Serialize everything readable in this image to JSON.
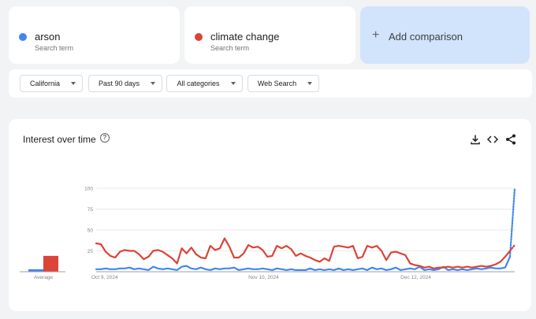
{
  "terms": [
    {
      "name": "arson",
      "subtitle": "Search term",
      "color": "#4285f4"
    },
    {
      "name": "climate change",
      "subtitle": "Search term",
      "color": "#db4437"
    }
  ],
  "add_comparison": {
    "plus": "+",
    "label": "Add comparison"
  },
  "filters": {
    "region": "California",
    "period": "Past 90 days",
    "category": "All categories",
    "search_type": "Web Search"
  },
  "panel": {
    "title": "Interest over time",
    "help_glyph": "?",
    "icons": [
      "download-icon",
      "embed-icon",
      "share-icon"
    ]
  },
  "chart_data": {
    "type": "line",
    "title": "Interest over time",
    "ylim": [
      0,
      100
    ],
    "yticks": [
      100,
      75,
      50,
      25
    ],
    "grid": true,
    "x_tick_labels": [
      {
        "label": "Oct 9, 2024",
        "index": 0
      },
      {
        "label": "Nov 10, 2024",
        "index": 32
      },
      {
        "label": "Dec 12, 2024",
        "index": 64
      }
    ],
    "average": {
      "label": "Average",
      "values": [
        3,
        19
      ]
    },
    "series": [
      {
        "name": "arson",
        "color": "#4285f4",
        "values": [
          3,
          3,
          4,
          3,
          3,
          4,
          4,
          5,
          3,
          4,
          3,
          2,
          6,
          4,
          3,
          4,
          3,
          2,
          6,
          7,
          4,
          3,
          5,
          3,
          2,
          4,
          3,
          4,
          4,
          5,
          2,
          3,
          4,
          3,
          3,
          4,
          3,
          2,
          4,
          3,
          2,
          3,
          2,
          2,
          2,
          4,
          2,
          3,
          2,
          3,
          2,
          4,
          2,
          3,
          2,
          3,
          4,
          2,
          5,
          3,
          4,
          2,
          3,
          5,
          2,
          3,
          4,
          3,
          6,
          2,
          3,
          2,
          3,
          6,
          2,
          3,
          2,
          3,
          2,
          3,
          4,
          3,
          4,
          5,
          4,
          4,
          5,
          18
        ],
        "partial_last": 100
      },
      {
        "name": "climate change",
        "color": "#db4437",
        "values": [
          34,
          33,
          24,
          19,
          17,
          24,
          26,
          25,
          25,
          21,
          15,
          18,
          25,
          26,
          24,
          20,
          16,
          10,
          28,
          22,
          29,
          21,
          17,
          16,
          31,
          26,
          28,
          40,
          30,
          17,
          17,
          22,
          32,
          29,
          30,
          26,
          18,
          19,
          31,
          28,
          31,
          27,
          19,
          22,
          19,
          17,
          14,
          12,
          16,
          13,
          30,
          31,
          30,
          29,
          31,
          16,
          18,
          31,
          29,
          31,
          25,
          14,
          23,
          24,
          22,
          20,
          10,
          8,
          7,
          5,
          6,
          4,
          5,
          5,
          6,
          5,
          6,
          5,
          6,
          5,
          6,
          7,
          6,
          7,
          9,
          12,
          18,
          25
        ],
        "partial_last": 32
      }
    ]
  }
}
